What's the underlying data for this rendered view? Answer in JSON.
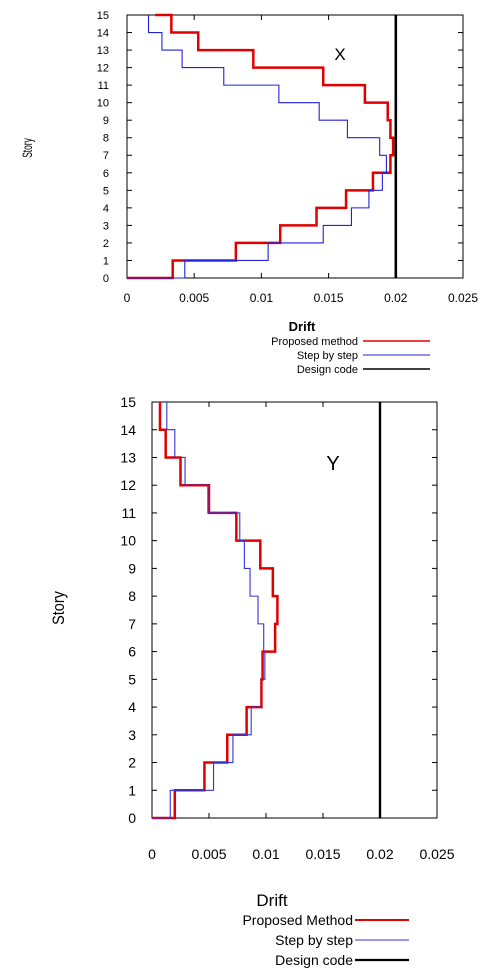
{
  "chart_data": [
    {
      "type": "line",
      "annotation": "X",
      "xlabel": "Drift",
      "ylabel": "Story",
      "xlim": [
        0,
        0.025
      ],
      "ylim": [
        0,
        15
      ],
      "x_ticks": [
        "0",
        "0.005",
        "0.01",
        "0.015",
        "0.02",
        "0.025"
      ],
      "y_ticks": [
        "0",
        "1",
        "2",
        "3",
        "4",
        "5",
        "6",
        "7",
        "8",
        "9",
        "10",
        "11",
        "12",
        "13",
        "14",
        "15"
      ],
      "grid": false,
      "legend_position": "below",
      "series": [
        {
          "name": "Proposed method",
          "color": "#e00000",
          "values": [
            0.0034,
            0.0081,
            0.0114,
            0.0141,
            0.0163,
            0.0183,
            0.0196,
            0.0198,
            0.0196,
            0.0194,
            0.0177,
            0.0146,
            0.0094,
            0.0053,
            0.0033,
            0.0021
          ]
        },
        {
          "name": "Step by step",
          "color": "#2222dd",
          "values": [
            0.0043,
            0.0105,
            0.0146,
            0.0167,
            0.018,
            0.019,
            0.0193,
            0.0188,
            0.0164,
            0.0143,
            0.0113,
            0.0072,
            0.0041,
            0.0026,
            0.0016,
            0.0016
          ]
        },
        {
          "name": "Design code",
          "color": "#000000",
          "values": [
            0.02,
            0.02
          ]
        }
      ]
    },
    {
      "type": "line",
      "annotation": "Y",
      "xlabel": "Drift",
      "ylabel": "Story",
      "xlim": [
        0,
        0.025
      ],
      "ylim": [
        0,
        15
      ],
      "x_ticks": [
        "0",
        "0.005",
        "0.01",
        "0.015",
        "0.02",
        "0.025"
      ],
      "y_ticks": [
        "0",
        "1",
        "2",
        "3",
        "4",
        "5",
        "6",
        "7",
        "8",
        "9",
        "10",
        "11",
        "12",
        "13",
        "14",
        "15"
      ],
      "grid": false,
      "legend_position": "below",
      "series": [
        {
          "name": "Proposed Method",
          "color": "#e00000",
          "values": [
            0.002,
            0.0046,
            0.0066,
            0.0083,
            0.0096,
            0.0097,
            0.0108,
            0.011,
            0.0106,
            0.0095,
            0.0074,
            0.005,
            0.0025,
            0.0012,
            0.0007,
            0.0007
          ]
        },
        {
          "name": "Step by step",
          "color": "#3333dd",
          "values": [
            0.0016,
            0.0054,
            0.0071,
            0.0087,
            0.0096,
            0.0099,
            0.0098,
            0.0093,
            0.0086,
            0.0081,
            0.0077,
            0.0049,
            0.0029,
            0.002,
            0.0013,
            0.0013
          ]
        },
        {
          "name": "Design code",
          "color": "#000000",
          "values": [
            0.02,
            0.02
          ]
        }
      ]
    }
  ]
}
